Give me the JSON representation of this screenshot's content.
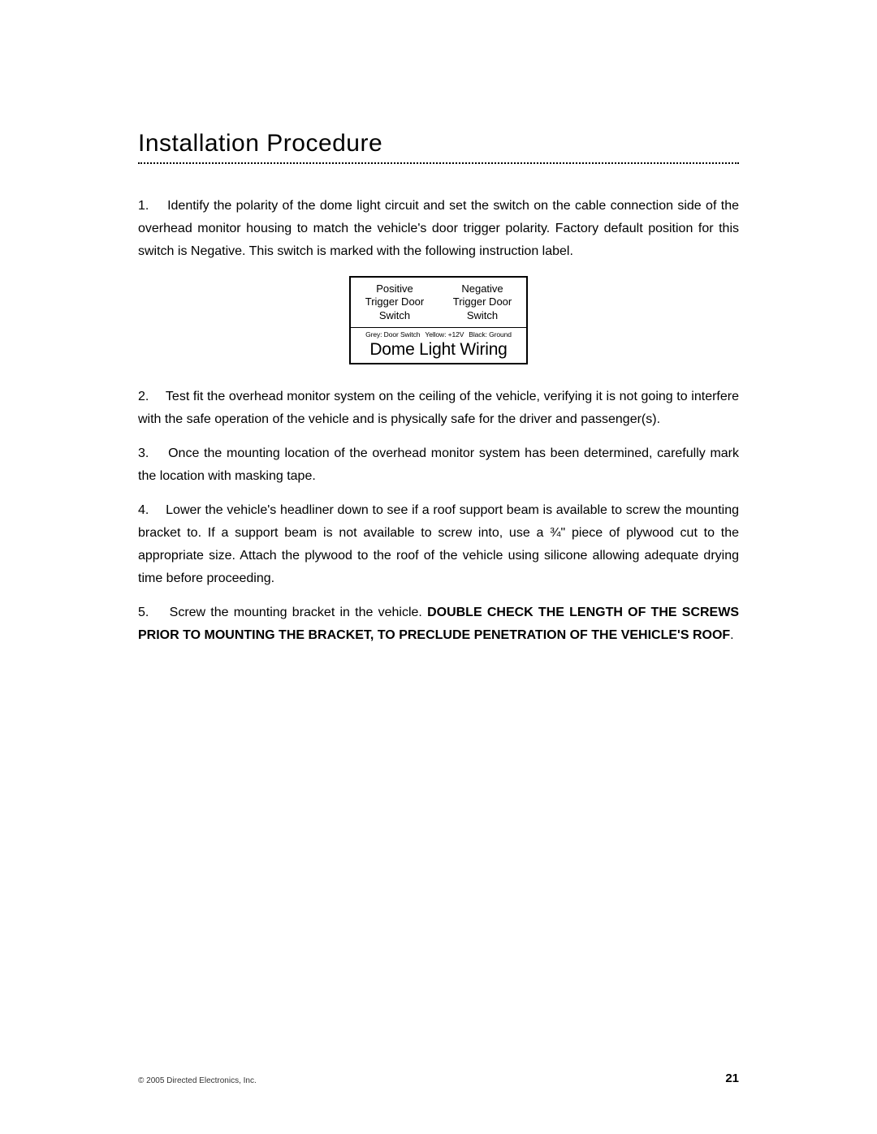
{
  "title": "Installation Procedure",
  "paragraphs": {
    "p1_num": "1.",
    "p1": "Identify the polarity of the dome light circuit and set the switch on the cable connection side of the overhead monitor housing to match the vehicle's door trigger polarity. Factory default position for this switch is Negative. This switch is marked with the following instruction label.",
    "p2_num": "2.",
    "p2": "Test fit the overhead monitor system on the ceiling of the vehicle, verifying it is not going to interfere with the safe operation of the vehicle and is physically safe for the driver and passenger(s).",
    "p3_num": "3.",
    "p3": "Once the mounting location of the overhead monitor system has been determined, carefully mark the location with masking tape.",
    "p4_num": "4.",
    "p4": "Lower the vehicle's headliner down to see if a roof support beam is available to screw the mounting bracket to. If a support beam is not available to screw into, use a ¾\" piece of plywood cut to the appropriate size. Attach the plywood to the roof of the vehicle using silicone allowing adequate drying time before proceeding.",
    "p5_num": "5.",
    "p5a": "Screw the mounting bracket in the vehicle. ",
    "p5b": "DOUBLE CHECK THE LENGTH OF THE SCREWS PRIOR TO MOUNTING THE BRACKET, TO PRECLUDE PENETRATION OF THE VEHICLE'S ROOF",
    "p5c": "."
  },
  "label": {
    "col_left_l1": "Positive",
    "col_left_l2": "Trigger Door",
    "col_left_l3": "Switch",
    "col_right_l1": "Negative",
    "col_right_l2": "Trigger Door",
    "col_right_l3": "Switch",
    "mid_a": "Grey: Door Switch",
    "mid_b": "Yellow: +12V",
    "mid_c": "Black: Ground",
    "big": "Dome Light Wiring"
  },
  "footer": {
    "copyright": "© 2005 Directed Electronics, Inc.",
    "page": "21"
  },
  "colors": {
    "text": "#000000",
    "background": "#ffffff",
    "border": "#000000"
  },
  "typography": {
    "title_fontsize": 30,
    "body_fontsize": 16,
    "body_lineheight": 1.75,
    "label_small_fontsize": 13,
    "label_tiny_fontsize": 8.5,
    "label_big_fontsize": 21,
    "footer_small_fontsize": 10,
    "footer_page_fontsize": 15
  }
}
